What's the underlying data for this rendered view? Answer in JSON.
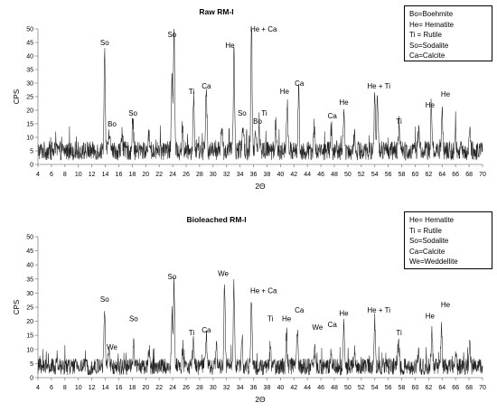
{
  "chart_data": [
    {
      "type": "line",
      "title": "Raw RM-I",
      "xlabel": "2Θ",
      "ylabel": "CPS",
      "xlim": [
        4,
        70
      ],
      "ylim": [
        0,
        50
      ],
      "x_ticks": [
        4,
        6,
        8,
        10,
        12,
        14,
        16,
        18,
        20,
        22,
        24,
        26,
        28,
        30,
        32,
        34,
        36,
        38,
        40,
        42,
        44,
        46,
        48,
        50,
        52,
        54,
        56,
        58,
        60,
        62,
        64,
        66,
        68,
        70
      ],
      "y_ticks": [
        0,
        5,
        10,
        15,
        20,
        25,
        30,
        35,
        40,
        45,
        50
      ],
      "grid": false,
      "legend_position": "top-right",
      "legend": [
        "Bo=Boehmite",
        "He= Hematite",
        "Ti = Rutile",
        "So=Sodalite",
        "Ca=Calcite"
      ],
      "series_color": "#222222",
      "baseline": 4,
      "noise": 7,
      "peaks": [
        {
          "x": 13.9,
          "y": 41
        },
        {
          "x": 14.6,
          "y": 12
        },
        {
          "x": 16.5,
          "y": 10
        },
        {
          "x": 18.1,
          "y": 15
        },
        {
          "x": 20.5,
          "y": 10
        },
        {
          "x": 24.2,
          "y": 50
        },
        {
          "x": 23.9,
          "y": 34
        },
        {
          "x": 25.5,
          "y": 12
        },
        {
          "x": 27.1,
          "y": 24
        },
        {
          "x": 29.0,
          "y": 26
        },
        {
          "x": 31.3,
          "y": 14
        },
        {
          "x": 33.1,
          "y": 41
        },
        {
          "x": 34.4,
          "y": 14
        },
        {
          "x": 35.7,
          "y": 49
        },
        {
          "x": 36.3,
          "y": 13
        },
        {
          "x": 36.8,
          "y": 12
        },
        {
          "x": 39.3,
          "y": 14
        },
        {
          "x": 41.0,
          "y": 22
        },
        {
          "x": 42.7,
          "y": 27
        },
        {
          "x": 45.0,
          "y": 13
        },
        {
          "x": 47.5,
          "y": 11
        },
        {
          "x": 49.4,
          "y": 18
        },
        {
          "x": 51.0,
          "y": 11
        },
        {
          "x": 54.0,
          "y": 26
        },
        {
          "x": 54.4,
          "y": 24
        },
        {
          "x": 57.6,
          "y": 14
        },
        {
          "x": 60.5,
          "y": 12
        },
        {
          "x": 62.4,
          "y": 18
        },
        {
          "x": 64.0,
          "y": 20
        },
        {
          "x": 66.0,
          "y": 10
        },
        {
          "x": 68.1,
          "y": 12
        }
      ],
      "annotations": [
        {
          "text": "So",
          "x": 13.9,
          "y": 44
        },
        {
          "text": "Bo",
          "x": 15.0,
          "y": 14
        },
        {
          "text": "So",
          "x": 18.1,
          "y": 18
        },
        {
          "text": "So",
          "x": 23.9,
          "y": 47
        },
        {
          "text": "Ti",
          "x": 26.8,
          "y": 26
        },
        {
          "text": "Ca",
          "x": 29.0,
          "y": 28
        },
        {
          "text": "He",
          "x": 32.5,
          "y": 43
        },
        {
          "text": "He + Ca",
          "x": 37.5,
          "y": 49
        },
        {
          "text": "So",
          "x": 34.3,
          "y": 18
        },
        {
          "text": "Bo",
          "x": 36.6,
          "y": 15
        },
        {
          "text": "Ti",
          "x": 37.6,
          "y": 18
        },
        {
          "text": "He",
          "x": 40.6,
          "y": 26
        },
        {
          "text": "Ca",
          "x": 42.8,
          "y": 29
        },
        {
          "text": "He",
          "x": 49.4,
          "y": 22
        },
        {
          "text": "Ca",
          "x": 47.7,
          "y": 17
        },
        {
          "text": "He + Ti",
          "x": 54.6,
          "y": 28
        },
        {
          "text": "Ti",
          "x": 57.6,
          "y": 15
        },
        {
          "text": "He",
          "x": 62.2,
          "y": 21
        },
        {
          "text": "He",
          "x": 64.5,
          "y": 25
        }
      ]
    },
    {
      "type": "line",
      "title": "Bioleached RM-I",
      "xlabel": "2Θ",
      "ylabel": "CPS",
      "xlim": [
        4,
        70
      ],
      "ylim": [
        0,
        50
      ],
      "x_ticks": [
        4,
        6,
        8,
        10,
        12,
        14,
        16,
        18,
        20,
        22,
        24,
        26,
        28,
        30,
        32,
        34,
        36,
        38,
        40,
        42,
        44,
        46,
        48,
        50,
        52,
        54,
        56,
        58,
        60,
        62,
        64,
        66,
        68,
        70
      ],
      "y_ticks": [
        0,
        5,
        10,
        15,
        20,
        25,
        30,
        35,
        40,
        45,
        50
      ],
      "grid": false,
      "legend_position": "top-right",
      "legend": [
        "He= Hematite",
        "Ti = Rutile",
        "So=Sodalite",
        "Ca=Calcite",
        "We=Weddellite"
      ],
      "series_color": "#222222",
      "baseline": 3,
      "noise": 6,
      "peaks": [
        {
          "x": 13.9,
          "y": 24
        },
        {
          "x": 14.5,
          "y": 9
        },
        {
          "x": 18.2,
          "y": 11
        },
        {
          "x": 20.5,
          "y": 9
        },
        {
          "x": 24.2,
          "y": 32
        },
        {
          "x": 23.9,
          "y": 22
        },
        {
          "x": 25.5,
          "y": 10
        },
        {
          "x": 27.1,
          "y": 12
        },
        {
          "x": 29.0,
          "y": 13
        },
        {
          "x": 30.5,
          "y": 10
        },
        {
          "x": 31.7,
          "y": 33
        },
        {
          "x": 33.1,
          "y": 32
        },
        {
          "x": 34.3,
          "y": 14
        },
        {
          "x": 35.7,
          "y": 28
        },
        {
          "x": 38.5,
          "y": 11
        },
        {
          "x": 40.9,
          "y": 15
        },
        {
          "x": 42.5,
          "y": 16
        },
        {
          "x": 45.1,
          "y": 10
        },
        {
          "x": 47.5,
          "y": 9
        },
        {
          "x": 49.4,
          "y": 17
        },
        {
          "x": 51.0,
          "y": 9
        },
        {
          "x": 54.0,
          "y": 20
        },
        {
          "x": 57.5,
          "y": 12
        },
        {
          "x": 60.5,
          "y": 10
        },
        {
          "x": 62.5,
          "y": 15
        },
        {
          "x": 63.9,
          "y": 18
        },
        {
          "x": 66.0,
          "y": 9
        },
        {
          "x": 68.1,
          "y": 10
        }
      ],
      "annotations": [
        {
          "text": "So",
          "x": 13.9,
          "y": 27
        },
        {
          "text": "We",
          "x": 15.0,
          "y": 10
        },
        {
          "text": "So",
          "x": 18.2,
          "y": 20
        },
        {
          "text": "So",
          "x": 23.9,
          "y": 35
        },
        {
          "text": "Ti",
          "x": 26.8,
          "y": 15
        },
        {
          "text": "Ca",
          "x": 29.0,
          "y": 16
        },
        {
          "text": "We",
          "x": 31.5,
          "y": 36
        },
        {
          "text": "He + Ca",
          "x": 37.5,
          "y": 30
        },
        {
          "text": "Ti",
          "x": 38.5,
          "y": 20
        },
        {
          "text": "He",
          "x": 40.9,
          "y": 20
        },
        {
          "text": "Ca",
          "x": 42.8,
          "y": 23
        },
        {
          "text": "We",
          "x": 45.5,
          "y": 17
        },
        {
          "text": "Ca",
          "x": 47.7,
          "y": 18
        },
        {
          "text": "He",
          "x": 49.4,
          "y": 22
        },
        {
          "text": "He + Ti",
          "x": 54.6,
          "y": 23
        },
        {
          "text": "Ti",
          "x": 57.6,
          "y": 15
        },
        {
          "text": "He",
          "x": 62.2,
          "y": 21
        },
        {
          "text": "He",
          "x": 64.5,
          "y": 25
        }
      ]
    }
  ]
}
